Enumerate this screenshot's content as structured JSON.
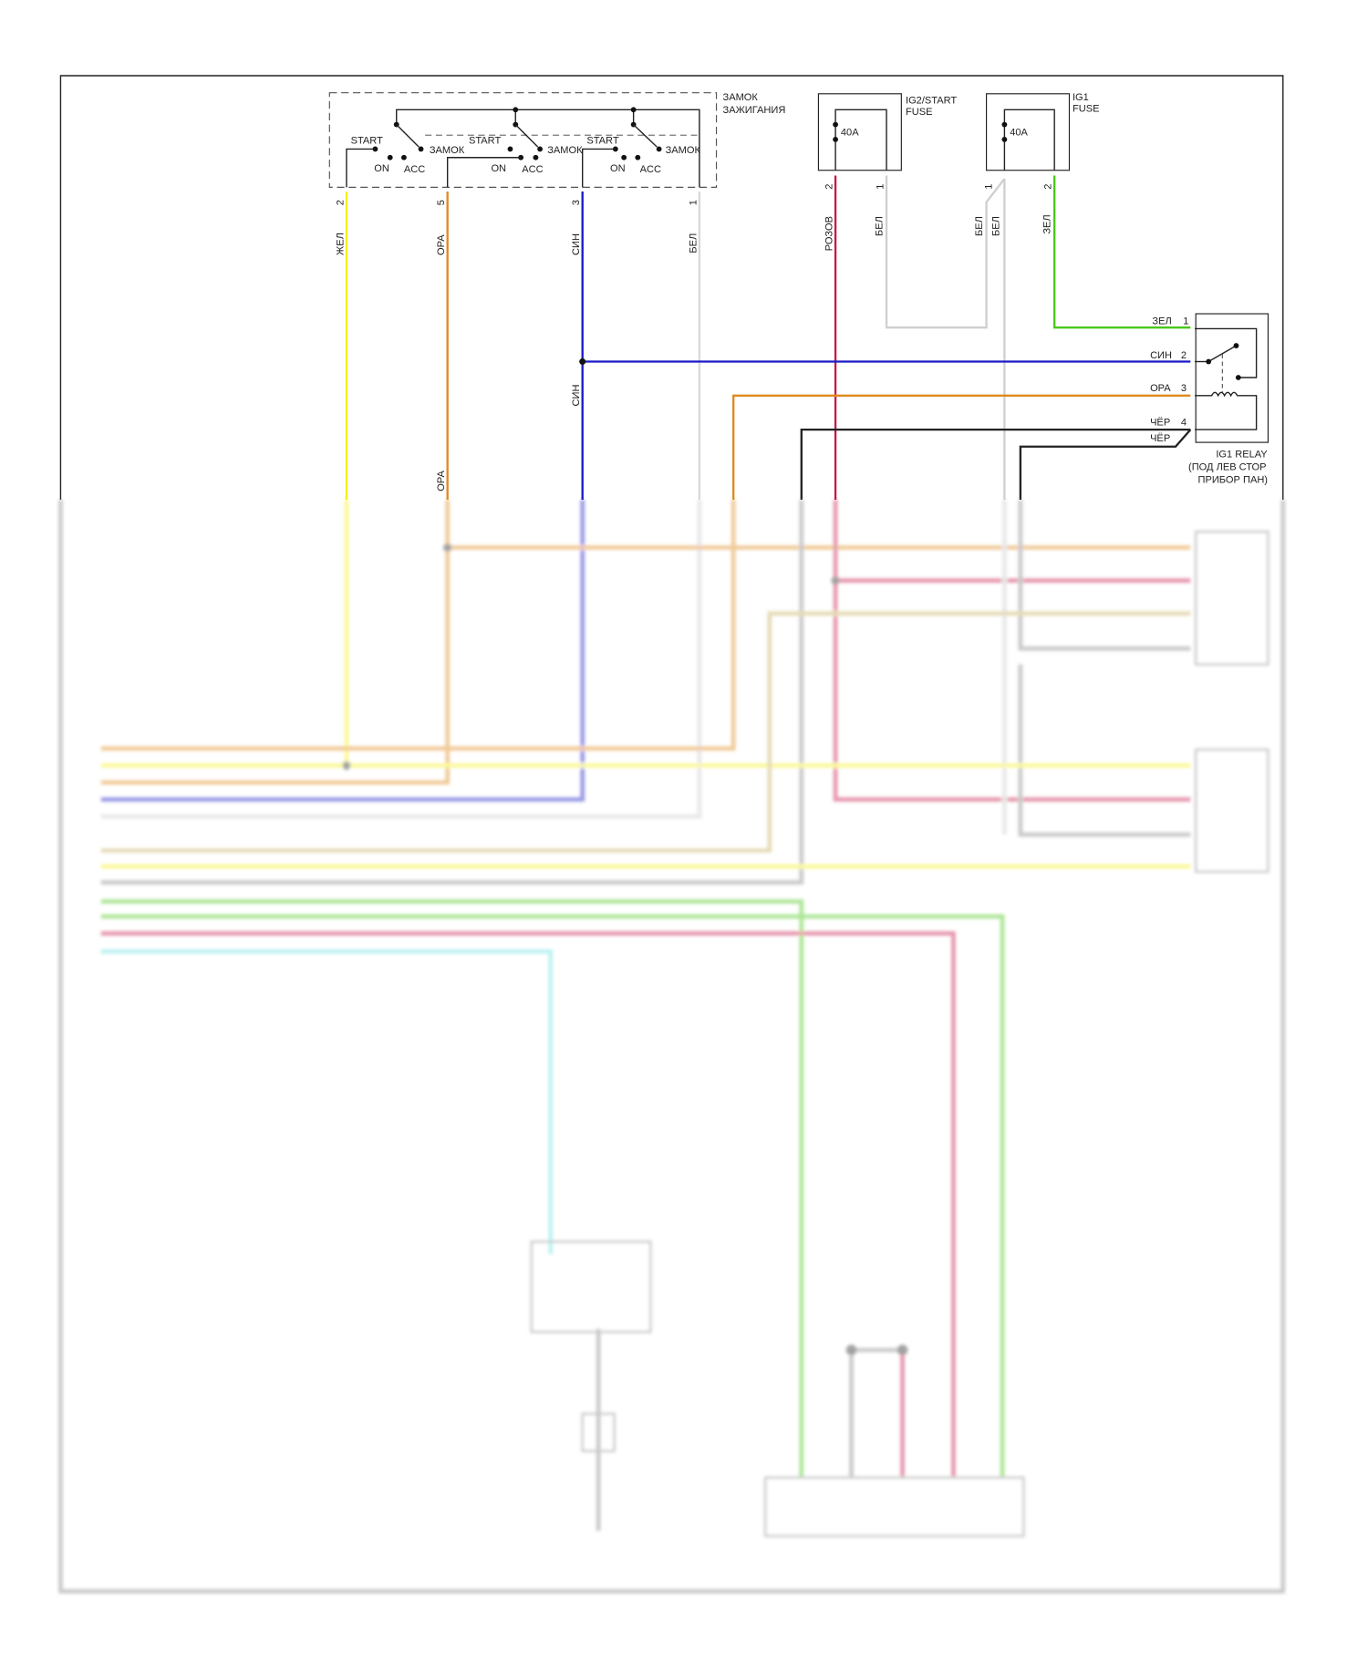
{
  "ignition_switch": {
    "title_line1": "ЗАМОК",
    "title_line2": "ЗАЖИГАНИЯ",
    "positions": [
      "START",
      "ON",
      "ACC",
      "ЗАМОК"
    ],
    "pins": [
      "2",
      "5",
      "3",
      "1"
    ]
  },
  "fuse_ig2": {
    "title_line1": "IG2/START",
    "title_line2": "FUSE",
    "rating": "40A",
    "pins": [
      "2",
      "1"
    ]
  },
  "fuse_ig1": {
    "title_line1": "IG1",
    "title_line2": "FUSE",
    "rating": "40A",
    "pins": [
      "1",
      "2"
    ]
  },
  "relay": {
    "title_line1": "IG1 RELAY",
    "title_line2": "(ПОД ЛЕВ СТОР",
    "title_line3": "ПРИБОР ПАН)",
    "pins": [
      {
        "num": "1",
        "wire": "ЗЕЛ"
      },
      {
        "num": "2",
        "wire": "СИН"
      },
      {
        "num": "3",
        "wire": "ОРА"
      },
      {
        "num": "4",
        "wire": "ЧЁР"
      }
    ],
    "extra_wire": "ЧЁР"
  },
  "wire_labels": {
    "yellow": "ЖЕЛ",
    "orange": "ОРА",
    "blue": "СИН",
    "white": "БЕЛ",
    "pink": "РОЗОВ",
    "white2": "БЕЛ",
    "white3": "БЕЛ",
    "white4": "БЕЛ",
    "green": "ЗЕЛ",
    "blue2": "СИН",
    "orange2": "ОРА"
  },
  "colors": {
    "yellow": "#f5f01c",
    "orange": "#e08a1e",
    "blue": "#1a1ac8",
    "white": "#cfcfcf",
    "pink": "#c8174a",
    "green": "#49c81a",
    "black": "#222222",
    "cyan": "#6fe0e0"
  }
}
